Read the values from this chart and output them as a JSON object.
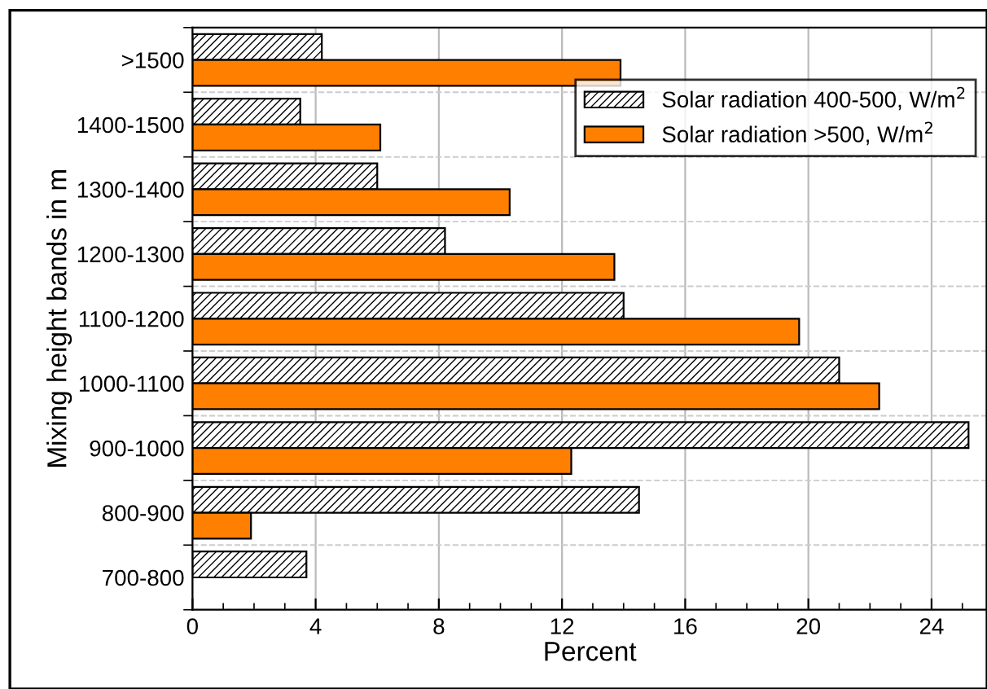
{
  "chart_data": {
    "type": "bar",
    "orientation": "horizontal",
    "xlabel": "Percent",
    "ylabel": "Mixing height bands in m",
    "categories": [
      ">1500",
      "1400-1500",
      "1300-1400",
      "1200-1300",
      "1100-1200",
      "1000-1100",
      "900-1000",
      "800-900",
      "700-800"
    ],
    "series": [
      {
        "name": "Solar radiation 400-500, W/m$^{2}$",
        "color": "#000000",
        "values": [
          4.2,
          3.5,
          6.0,
          8.2,
          14.0,
          21.0,
          25.2,
          14.5,
          3.7
        ]
      },
      {
        "name": "Solar radiation >500, W/m$^{2}$",
        "color": "#ff7f00",
        "values": [
          13.9,
          6.1,
          10.3,
          13.7,
          19.7,
          22.3,
          12.3,
          1.9,
          null
        ]
      }
    ],
    "xlim": [
      0,
      25.8
    ],
    "xticks": [
      0,
      4,
      8,
      12,
      16,
      20,
      24
    ],
    "grid": true,
    "legend": "top right"
  }
}
